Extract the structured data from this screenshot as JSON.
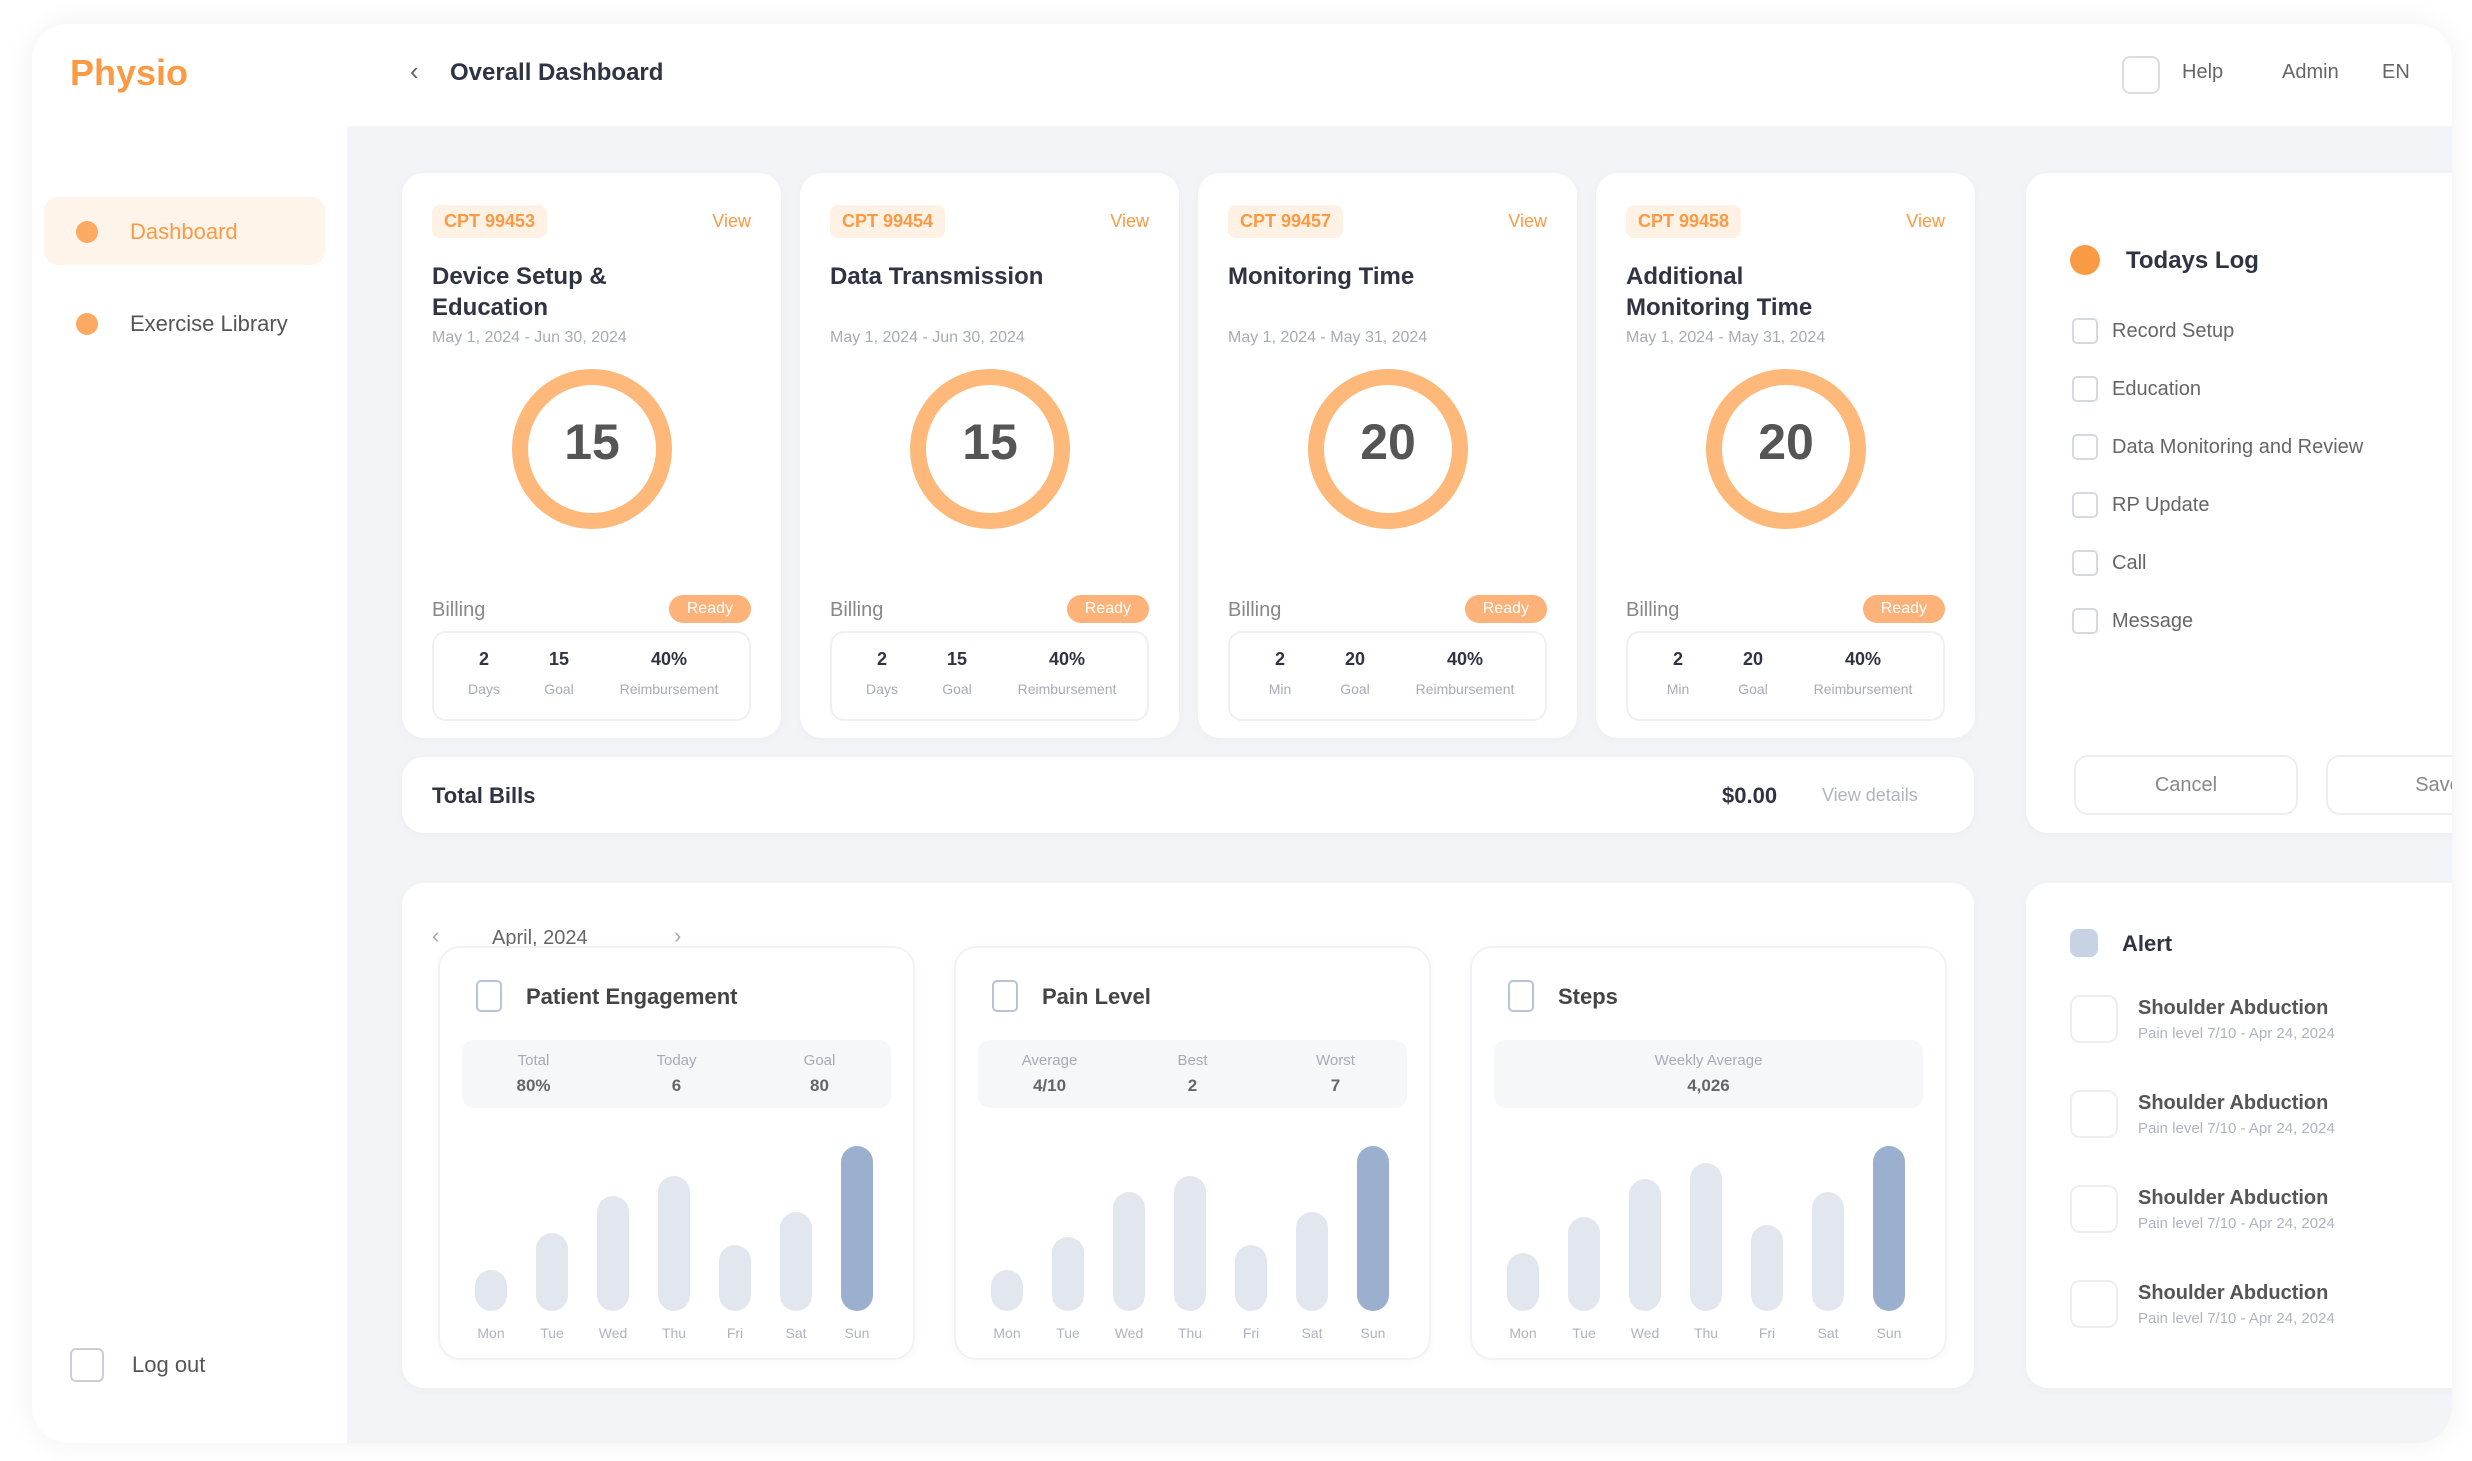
{
  "sidebar": {
    "logo": "Physio",
    "nav": [
      "Dashboard",
      "Exercise Library"
    ],
    "logout": "Log out"
  },
  "header": {
    "title": "Overall Dashboard",
    "links": [
      "Help",
      "Admin",
      "EN"
    ]
  },
  "cards": [
    {
      "tag": "CPT 99453",
      "link": "View",
      "title": "Device Setup & Education",
      "date": "May 1, 2024 - Jun 30, 2024",
      "count": 15,
      "billing": "Billing",
      "status": "Ready",
      "stats": [
        {
          "value": "2",
          "label": "Days"
        },
        {
          "value": "15",
          "label": "Goal"
        },
        {
          "value": "40%",
          "label": "Reimbursement"
        }
      ]
    },
    {
      "tag": "CPT 99454",
      "link": "View",
      "title": "Data Transmission",
      "date": "May 1, 2024 - Jun 30, 2024",
      "count": 15,
      "billing": "Billing",
      "status": "Ready",
      "stats": [
        {
          "value": "2",
          "label": "Days"
        },
        {
          "value": "15",
          "label": "Goal"
        },
        {
          "value": "40%",
          "label": "Reimbursement"
        }
      ]
    },
    {
      "tag": "CPT 99457",
      "link": "View",
      "title": "Monitoring Time",
      "date": "May 1, 2024 - May 31, 2024",
      "count": 20,
      "billing": "Billing",
      "status": "Ready",
      "stats": [
        {
          "value": "2",
          "label": "Min"
        },
        {
          "value": "20",
          "label": "Goal"
        },
        {
          "value": "40%",
          "label": "Reimbursement"
        }
      ]
    },
    {
      "tag": "CPT 99458",
      "link": "View",
      "title": "Additional Monitoring Time",
      "date": "May 1, 2024 - May 31, 2024",
      "count": 20,
      "billing": "Billing",
      "status": "Ready",
      "stats": [
        {
          "value": "2",
          "label": "Min"
        },
        {
          "value": "20",
          "label": "Goal"
        },
        {
          "value": "40%",
          "label": "Reimbursement"
        }
      ]
    }
  ],
  "total_bills": {
    "label": "Total Bills",
    "value": "$0.00",
    "link": "View details"
  },
  "todays_log": {
    "title": "Todays Log",
    "items": [
      "Record Setup",
      "Education",
      "Data Monitoring and Review",
      "RP Update",
      "Call",
      "Message"
    ],
    "buttons": [
      "Cancel",
      "Save"
    ]
  },
  "metrics": {
    "date": "April, 2024",
    "panels": [
      {
        "title": "Patient Engagement",
        "stats": [
          {
            "label": "Total",
            "value": "80%"
          },
          {
            "label": "Today",
            "value": "6"
          },
          {
            "label": "Goal",
            "value": "80"
          }
        ],
        "days": [
          "Mon",
          "Tue",
          "Wed",
          "Thu",
          "Fri",
          "Sat",
          "Sun"
        ],
        "values": [
          25,
          47,
          70,
          82,
          40,
          60,
          100
        ],
        "ylim": [
          0,
          100
        ]
      },
      {
        "title": "Pain Level",
        "stats": [
          {
            "label": "Average",
            "value": "4/10"
          },
          {
            "label": "Best",
            "value": "2"
          },
          {
            "label": "Worst",
            "value": "7"
          }
        ],
        "days": [
          "Mon",
          "Tue",
          "Wed",
          "Thu",
          "Fri",
          "Sat",
          "Sun"
        ],
        "values": [
          25,
          45,
          72,
          82,
          40,
          60,
          100
        ],
        "ylim": [
          0,
          100
        ]
      },
      {
        "title": "Steps",
        "stats": [
          {
            "label": "Weekly Average",
            "value": "4,026"
          }
        ],
        "days": [
          "Mon",
          "Tue",
          "Wed",
          "Thu",
          "Fri",
          "Sat",
          "Sun"
        ],
        "values": [
          35,
          57,
          80,
          90,
          52,
          72,
          100
        ],
        "ylim": [
          0,
          100
        ]
      }
    ]
  },
  "alerts": {
    "title": "Alert",
    "items": [
      {
        "title": "Shoulder Abduction",
        "detail": "Pain level 7/10 - Apr 24, 2024"
      },
      {
        "title": "Shoulder Abduction",
        "detail": "Pain level 7/10 - Apr 24, 2024"
      },
      {
        "title": "Shoulder Abduction",
        "detail": "Pain level 7/10 - Apr 24, 2024"
      },
      {
        "title": "Shoulder Abduction",
        "detail": "Pain level 7/10 - Apr 24, 2024"
      }
    ]
  }
}
